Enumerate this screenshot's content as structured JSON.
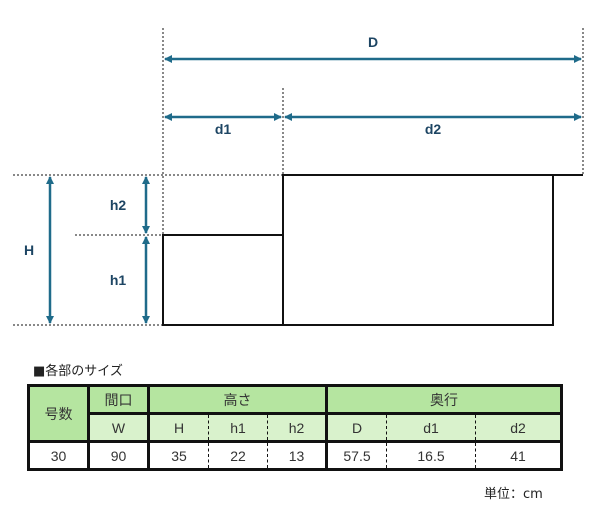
{
  "diagram": {
    "labels": {
      "D": "D",
      "d1": "d1",
      "d2": "d2",
      "H": "H",
      "h1": "h1",
      "h2": "h2"
    },
    "arrow_color": "#1f6b8a"
  },
  "table": {
    "title": "■各部のサイズ",
    "headers": {
      "number": "号数",
      "width": "間口",
      "height": "高さ",
      "depth": "奥行"
    },
    "subheaders": {
      "W": "W",
      "H": "H",
      "h1": "h1",
      "h2": "h2",
      "D": "D",
      "d1": "d1",
      "d2": "d2"
    },
    "row": {
      "number": "30",
      "W": "90",
      "H": "35",
      "h1": "22",
      "h2": "13",
      "D": "57.5",
      "d1": "16.5",
      "d2": "41"
    },
    "unit": "単位：cm",
    "header_color": "#b5e5a0",
    "subheader_color": "#d9f2cc"
  }
}
